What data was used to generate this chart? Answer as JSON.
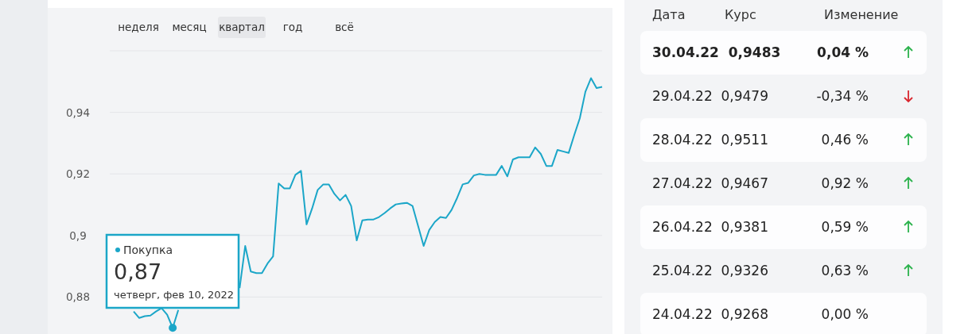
{
  "chart_data": [
    {
      "type": "line",
      "categories": [
        null,
        null,
        null,
        null,
        null,
        null,
        null,
        null,
        null,
        null,
        null,
        null,
        null,
        null,
        null,
        null,
        null,
        null,
        null,
        null,
        null,
        null,
        null,
        null,
        null,
        null,
        null,
        null,
        null,
        null,
        null,
        null,
        null,
        null,
        null,
        null,
        null,
        null,
        null,
        null,
        null,
        null,
        null,
        null,
        null,
        null,
        null,
        null,
        null,
        null,
        null,
        null,
        null,
        null,
        null,
        null,
        null,
        null,
        null,
        null,
        null,
        null,
        null,
        null,
        null,
        null,
        null,
        null,
        null,
        null,
        null,
        null,
        null,
        null,
        null,
        null,
        null,
        null,
        null,
        null,
        null,
        null,
        null,
        null,
        null,
        null,
        null,
        null,
        null
      ],
      "series": [
        {
          "color": "#1ba6c8",
          "values": [
            null,
            null,
            null,
            null,
            0.8753,
            0.8732,
            0.8738,
            0.874,
            0.8753,
            0.8764,
            0.8743,
            0.87,
            0.8758,
            null,
            null,
            null,
            null,
            null,
            null,
            null,
            null,
            null,
            null,
            null,
            null,
            null,
            null,
            null,
            null,
            null,
            null,
            null,
            null,
            null,
            null,
            null,
            null,
            null,
            null,
            null,
            null,
            null,
            null,
            null,
            null,
            null,
            null,
            null,
            null,
            null,
            null,
            null,
            null,
            null,
            null,
            null,
            null,
            null,
            null,
            null,
            null,
            null,
            null,
            null,
            null,
            null,
            null,
            null,
            null,
            null,
            null,
            null,
            null,
            null,
            null,
            null,
            null,
            null,
            null,
            null,
            null,
            null,
            null,
            null,
            null,
            null,
            null,
            null,
            null
          ]
        },
        {
          "name": "Покупка",
          "color": "#1ba6c8",
          "values": [
            null,
            null,
            null,
            null,
            null,
            null,
            null,
            null,
            null,
            null,
            null,
            null,
            null,
            null,
            null,
            null,
            null,
            null,
            null,
            null,
            null,
            null,
            null,
            0.8829,
            0.8966,
            0.8883,
            0.8878,
            0.8878,
            0.8909,
            0.8932,
            0.9169,
            0.9153,
            0.9153,
            0.9197,
            0.921,
            0.9036,
            0.9088,
            0.9148,
            0.9166,
            0.9166,
            0.9135,
            0.9114,
            0.9132,
            0.9096,
            0.8984,
            0.9049,
            0.9052,
            0.9052,
            0.906,
            0.9073,
            0.9088,
            0.9101,
            0.9104,
            0.9106,
            0.9096,
            0.9031,
            0.8966,
            0.9018,
            0.9044,
            0.906,
            0.9057,
            0.9083,
            0.9122,
            0.9166,
            0.9171,
            0.9195,
            0.92,
            0.9197,
            0.9197,
            0.9197,
            0.9226,
            0.9192,
            0.9247,
            0.9254,
            0.9254,
            0.9254,
            0.9286,
            0.9265,
            0.9226,
            0.9226,
            0.9278,
            0.9273,
            0.9268,
            0.9326,
            0.9381,
            0.9467,
            0.9511,
            0.9479,
            0.9483
          ]
        }
      ],
      "ylim": [
        0.868,
        0.96
      ],
      "yticks": [
        {
          "value": 0.88,
          "label": "0,88"
        },
        {
          "value": 0.9,
          "label": "0,9"
        },
        {
          "value": 0.92,
          "label": "0,92"
        },
        {
          "value": 0.94,
          "label": "0,94"
        },
        {
          "value": 0.96,
          "label": null
        }
      ],
      "grid": "y",
      "tick_labels": "y",
      "annotations": [
        "неделя",
        "месяц",
        "квартал",
        "год",
        "всё",
        "0,87",
        "четверг, фев 10, 2022"
      ]
    },
    {
      "type": "other",
      "annotations": [
        "Дата",
        "Курс",
        "Изменение",
        "30.04.22",
        "0,9483",
        "0,04 %",
        "29.04.22",
        "0,9479",
        "-0,34 %",
        "28.04.22",
        "0,9511",
        "0,46 %",
        "27.04.22",
        "0,9467",
        "0,92 %",
        "26.04.22",
        "0,9381",
        "0,59 %",
        "25.04.22",
        "0,9326",
        "0,63 %",
        "24.04.22",
        "0,9268",
        "0,00 %"
      ]
    }
  ]
}
